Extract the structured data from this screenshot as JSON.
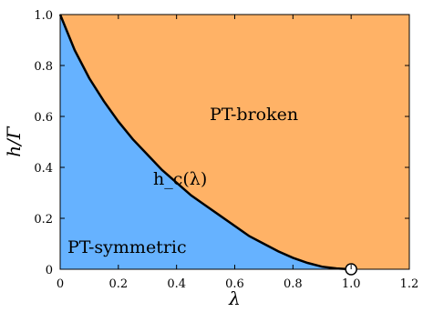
{
  "chart_data": {
    "type": "area",
    "xlabel": "λ",
    "ylabel": "h/Γ",
    "xlim": [
      0,
      1.2
    ],
    "ylim": [
      0,
      1.0
    ],
    "xticks": [
      "0",
      "0.2",
      "0.4",
      "0.6",
      "0.8",
      "1.0",
      "1.2"
    ],
    "yticks": [
      "0",
      "0.2",
      "0.4",
      "0.6",
      "0.8",
      "1.0"
    ],
    "curve": {
      "label": "h_c(λ)",
      "x": [
        0.0,
        0.05,
        0.1,
        0.15,
        0.2,
        0.25,
        0.3,
        0.35,
        0.4,
        0.45,
        0.5,
        0.55,
        0.6,
        0.65,
        0.7,
        0.75,
        0.8,
        0.85,
        0.9,
        0.95,
        1.0
      ],
      "y": [
        1.0,
        0.86,
        0.75,
        0.66,
        0.58,
        0.51,
        0.45,
        0.39,
        0.34,
        0.29,
        0.25,
        0.21,
        0.17,
        0.13,
        0.1,
        0.07,
        0.045,
        0.025,
        0.01,
        0.003,
        0.0
      ]
    },
    "regions": [
      {
        "label": "PT-broken",
        "color": "#ffb266",
        "side": "above-curve"
      },
      {
        "label": "PT-symmetric",
        "color": "#66b2ff",
        "side": "below-curve"
      }
    ],
    "marker": {
      "x": 1.0,
      "y": 0.0,
      "style": "open-circle"
    }
  }
}
